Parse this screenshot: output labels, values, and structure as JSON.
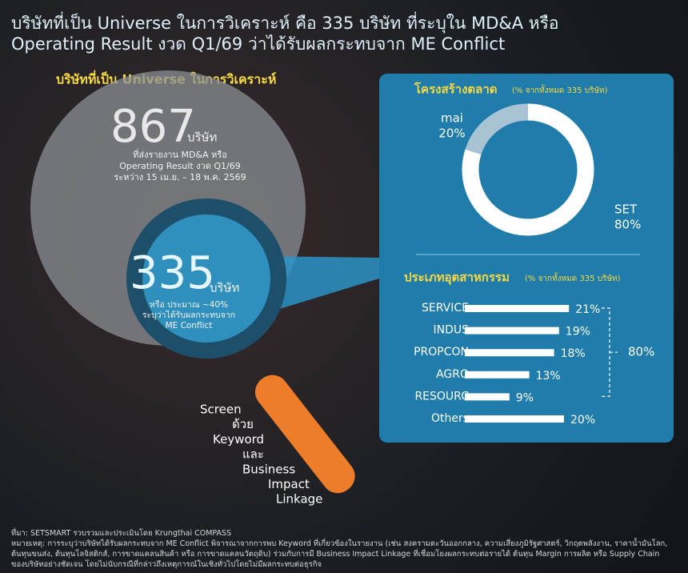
{
  "title_lines": [
    "บริษัทที่เป็น Universe ในการวิเคราะห์ คือ 335 บริษัท ที่ระบุใน MD&A หรือ",
    "Operating Result งวด Q1/69 ว่าได้รับผลกระทบจาก ME Conflict"
  ],
  "left": {
    "heading": "บริษัทที่เป็น Universe ในการวิเคราะห์",
    "outer_number": "867",
    "outer_unit": "บริษัท",
    "outer_lines": [
      "ที่ส่งรายงาน MD&A หรือ",
      "Operating Result งวด Q1/69",
      "ระหว่าง 15 เม.ย. – 18 พ.ค. 2569"
    ],
    "inner_number": "335",
    "inner_unit": "บริษัท",
    "inner_lines": [
      "หรือ ประมาณ ~40%",
      "ระบุว่าได้รับผลกระทบจาก",
      "ME Conflict"
    ],
    "screen_lines": [
      "Screen",
      "ด้วย",
      "Keyword",
      "และ",
      "Business",
      "Impact",
      "Linkage"
    ]
  },
  "chart_data": [
    {
      "type": "donut",
      "title": "โครงสร้างตลาด",
      "subtitle": "(% จากทั้งหมด 335 บริษัท)",
      "categories": [
        "SET",
        "mai"
      ],
      "values": [
        80,
        20
      ],
      "value_labels": [
        "80%",
        "20%"
      ],
      "colors": [
        "#ffffff",
        "#a8c4d4"
      ]
    },
    {
      "type": "hbar",
      "title": "ประเภทอุตสาหกรรม",
      "subtitle": "(% จากทั้งหมด 335 บริษัท)",
      "categories": [
        "SERVICE",
        "INDUS",
        "PROPCON",
        "AGRO",
        "RESOURC",
        "Others"
      ],
      "values": [
        21,
        19,
        18,
        13,
        9,
        20
      ],
      "value_labels": [
        "21%",
        "19%",
        "18%",
        "13%",
        "9%",
        "20%"
      ],
      "color": "#ffffff",
      "bracket_label": "80%"
    }
  ],
  "footer": {
    "source": "ที่มา: SETSMART รวบรวมและประเมินโดย Krungthai COMPASS",
    "note": "หมายเหตุ: การระบุว่าบริษัทได้รับผลกระทบจาก ME Conflict พิจารณาจากการพบ Keyword ที่เกี่ยวข้องในรายงาน (เช่น สงครามตะวันออกกลาง, ความเสี่ยงภูมิรัฐศาสตร์, วิกฤตพลังงาน, ราคาน้ำมันโลก, ต้นทุนขนส่ง, ต้นทุนโลจิสติกส์, การขาดแคลนสินค้า หรือ การขาดแคลนวัตถุดิบ) ร่วมกับการมี Business Impact Linkage ที่เชื่อมโยงผลกระทบต่อรายได้ ต้นทุน Margin การผลิต หรือ Supply Chain ของบริษัทอย่างชัดเจน โดยไม่นับกรณีที่กล่าวถึงเหตุการณ์ในเชิงทั่วไปโดยไม่มีผลกระทบต่อธุรกิจ"
  }
}
